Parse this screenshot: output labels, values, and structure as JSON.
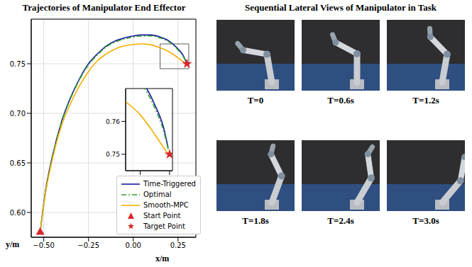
{
  "chart_data": [
    {
      "type": "line",
      "title": "Trajectories of Manipulator End Effector",
      "x_label": "x/m",
      "y_label": "y/m",
      "xlim": [
        -0.57,
        0.35
      ],
      "ylim": [
        0.575,
        0.795
      ],
      "xticks": [
        {
          "value": -0.5,
          "label": "−0.50"
        },
        {
          "value": -0.25,
          "label": "−0.25"
        },
        {
          "value": 0,
          "label": "0.00"
        },
        {
          "value": 0.25,
          "label": "0.25"
        }
      ],
      "yticks": [
        {
          "value": 0.6,
          "label": "0.60"
        },
        {
          "value": 0.65,
          "label": "0.65"
        },
        {
          "value": 0.7,
          "label": "0.70"
        },
        {
          "value": 0.75,
          "label": "0.75"
        }
      ],
      "grid": true,
      "legend": "lower right",
      "series": [
        {
          "name": "Time-Triggered",
          "type": "line",
          "color": "#1a1a9e",
          "line_style": "solid",
          "x": [
            -0.52,
            -0.49,
            -0.45,
            -0.4,
            -0.35,
            -0.3,
            -0.25,
            -0.2,
            -0.15,
            -0.1,
            -0.05,
            0.0,
            0.05,
            0.1,
            0.15,
            0.2,
            0.25,
            0.28,
            0.295
          ],
          "values": [
            0.58,
            0.622,
            0.658,
            0.692,
            0.716,
            0.735,
            0.75,
            0.76,
            0.768,
            0.773,
            0.776,
            0.778,
            0.779,
            0.779,
            0.777,
            0.773,
            0.765,
            0.758,
            0.752
          ]
        },
        {
          "name": "Optimal",
          "type": "line",
          "color": "#2ca02c",
          "line_style": "dashdot",
          "x": [
            -0.52,
            -0.49,
            -0.45,
            -0.4,
            -0.35,
            -0.3,
            -0.25,
            -0.2,
            -0.15,
            -0.1,
            -0.05,
            0.0,
            0.05,
            0.1,
            0.15,
            0.2,
            0.25,
            0.28,
            0.297
          ],
          "values": [
            0.58,
            0.621,
            0.657,
            0.691,
            0.715,
            0.734,
            0.749,
            0.759,
            0.767,
            0.772,
            0.775,
            0.777,
            0.778,
            0.778,
            0.776,
            0.772,
            0.764,
            0.757,
            0.751
          ]
        },
        {
          "name": "Smooth-MPC",
          "type": "line",
          "color": "#f0b000",
          "line_style": "solid",
          "x": [
            -0.52,
            -0.49,
            -0.45,
            -0.4,
            -0.35,
            -0.3,
            -0.25,
            -0.2,
            -0.15,
            -0.1,
            -0.05,
            0.0,
            0.05,
            0.1,
            0.15,
            0.2,
            0.25,
            0.28,
            0.3
          ],
          "values": [
            0.58,
            0.62,
            0.655,
            0.688,
            0.71,
            0.728,
            0.742,
            0.753,
            0.76,
            0.765,
            0.768,
            0.7695,
            0.77,
            0.769,
            0.766,
            0.762,
            0.756,
            0.752,
            0.7495
          ]
        },
        {
          "name": "Start Point",
          "type": "scatter",
          "color": "#d62728",
          "marker": "triangle",
          "x": [
            -0.52
          ],
          "values": [
            0.58
          ]
        },
        {
          "name": "Target Point",
          "type": "scatter",
          "color": "#d62728",
          "marker": "star",
          "x": [
            0.3
          ],
          "values": [
            0.75
          ]
        }
      ],
      "inset": {
        "type": "line",
        "xlim": [
          0.15,
          0.31
        ],
        "ylim": [
          0.745,
          0.77
        ],
        "xticks": [
          0.2,
          0.3
        ],
        "yticks": [
          0.75,
          0.76
        ]
      }
    }
  ],
  "photo_panel": {
    "title": "Sequential Lateral Views of Manipulator in Task",
    "captions": [
      "T=0",
      "T=0.6s",
      "T=1.2s",
      "T=1.8s",
      "T=2.4s",
      "T=3.0s"
    ]
  }
}
